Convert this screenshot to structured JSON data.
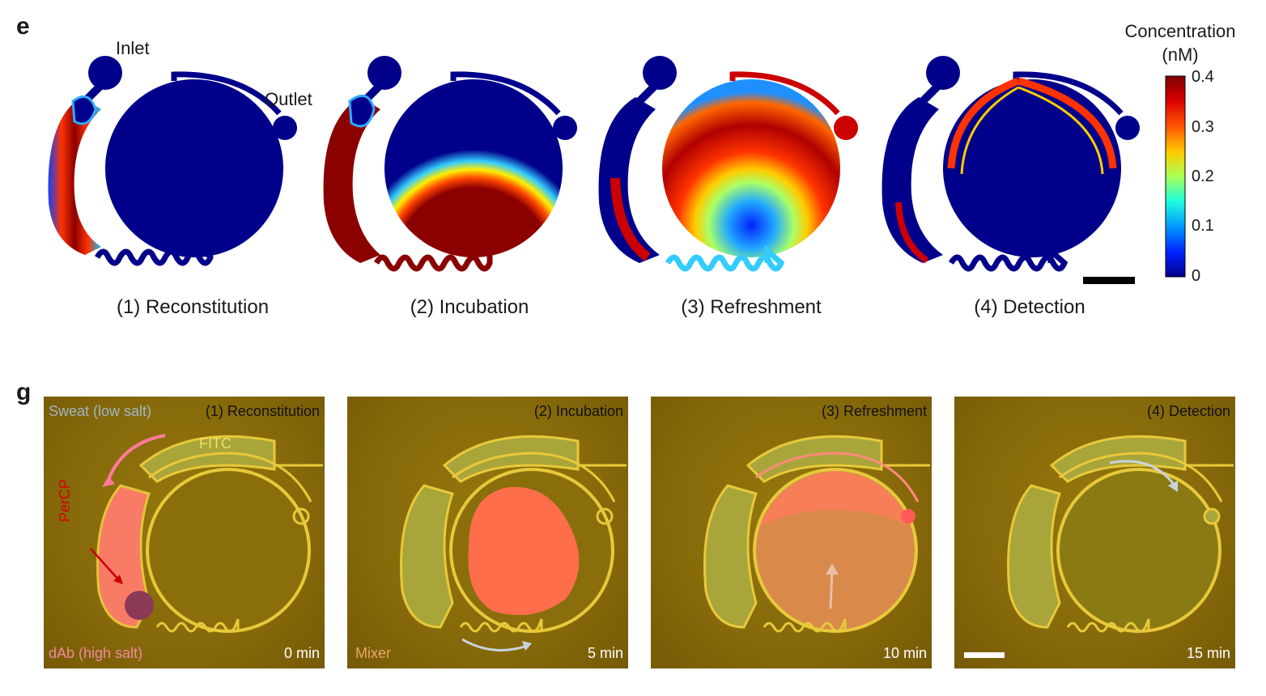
{
  "panel_e": {
    "letter": "e",
    "labels": {
      "inlet": "Inlet",
      "outlet": "Outlet"
    },
    "captions": [
      "(1) Reconstitution",
      "(2) Incubation",
      "(3) Refreshment",
      "(4) Detection"
    ],
    "colorbar": {
      "title_line1": "Concentration",
      "title_line2": "(nM)",
      "ticks": [
        "0.4",
        "0.3",
        "0.2",
        "0.1",
        "0"
      ],
      "colors": {
        "max": "#7f0000",
        "high": "#ff3300",
        "mid_high": "#ffcc00",
        "mid": "#66ff99",
        "mid_low": "#00ccff",
        "low": "#0033ff",
        "min": "#00008b"
      }
    }
  },
  "panel_g": {
    "letter": "g",
    "titles": [
      "(1) Reconstitution",
      "(2) Incubation",
      "(3) Refreshment",
      "(4) Detection"
    ],
    "times": [
      "0 min",
      "5 min",
      "10 min",
      "15 min"
    ],
    "labels": {
      "sweat": "Sweat (low salt)",
      "fitc": "FITC",
      "percp": "PerCP",
      "dab": "dAb (high salt)",
      "mixer": "Mixer"
    },
    "colors": {
      "background": "#86690a",
      "channel": "#e8c93a",
      "reservoir": "#a8a53a",
      "percp": "#ff6f5a",
      "sweat_text": "#9fb6c8",
      "dab_text": "#f08a9a",
      "mixer_text": "#e8a76a"
    }
  }
}
